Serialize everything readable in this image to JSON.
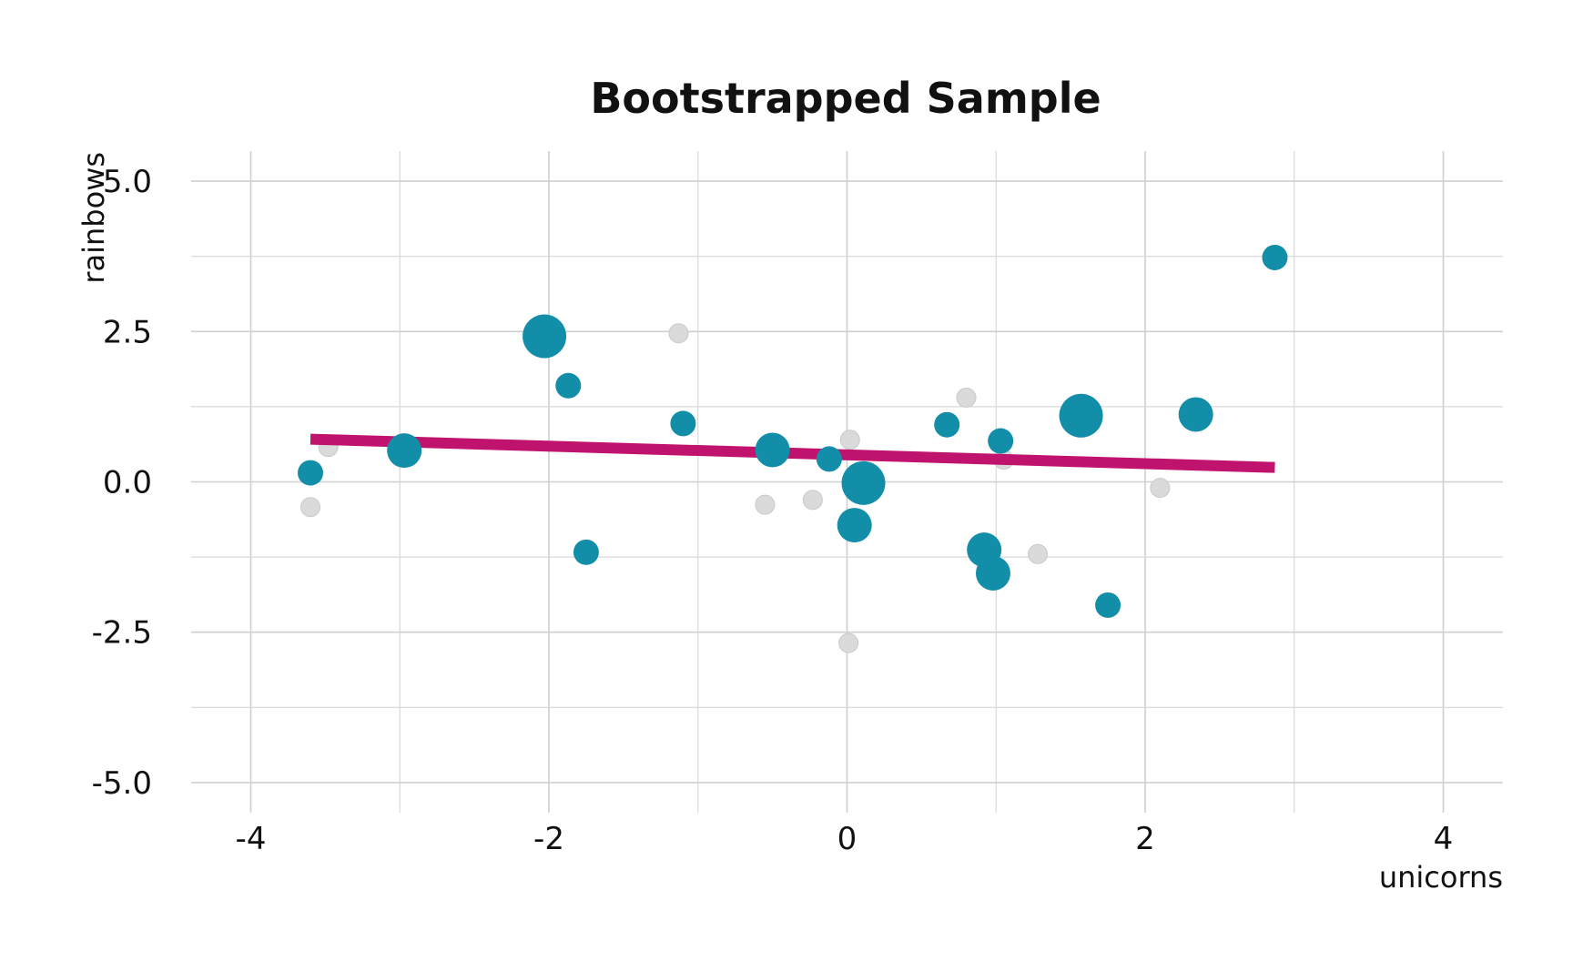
{
  "chart_data": {
    "type": "scatter",
    "title": "Bootstrapped Sample",
    "xlabel": "unicorns",
    "ylabel": "rainbows",
    "xlim": [
      -4.4,
      4.4
    ],
    "ylim": [
      -5.5,
      5.5
    ],
    "x_ticks": [
      -4,
      -2,
      0,
      2,
      4
    ],
    "x_tick_labels": [
      "-4",
      "-2",
      "0",
      "2",
      "4"
    ],
    "y_ticks": [
      -5,
      -2.5,
      0,
      2.5,
      5
    ],
    "y_tick_labels": [
      "-5.0",
      "-2.5",
      "0.0",
      "2.5",
      "5.0"
    ],
    "grid": true,
    "colors": {
      "sampled": "#138ea8",
      "background": "#dadada",
      "fit_line": "#c0136e"
    },
    "background_points": [
      {
        "x": -3.6,
        "y": -0.42
      },
      {
        "x": -3.48,
        "y": 0.58
      },
      {
        "x": -1.13,
        "y": 2.47
      },
      {
        "x": -0.55,
        "y": -0.38
      },
      {
        "x": -0.23,
        "y": -0.3
      },
      {
        "x": 0.02,
        "y": 0.7
      },
      {
        "x": 0.01,
        "y": -2.68
      },
      {
        "x": 0.8,
        "y": 1.4
      },
      {
        "x": 1.05,
        "y": 0.37
      },
      {
        "x": 1.28,
        "y": -1.2
      },
      {
        "x": 2.1,
        "y": -0.1
      }
    ],
    "sampled_points": [
      {
        "x": -3.6,
        "y": 0.15,
        "count": 1
      },
      {
        "x": -2.97,
        "y": 0.52,
        "count": 2
      },
      {
        "x": -2.03,
        "y": 2.42,
        "count": 3
      },
      {
        "x": -1.87,
        "y": 1.6,
        "count": 1
      },
      {
        "x": -1.75,
        "y": -1.17,
        "count": 1
      },
      {
        "x": -1.1,
        "y": 0.97,
        "count": 1
      },
      {
        "x": -0.5,
        "y": 0.53,
        "count": 2
      },
      {
        "x": -0.12,
        "y": 0.38,
        "count": 1
      },
      {
        "x": 0.05,
        "y": -0.72,
        "count": 2
      },
      {
        "x": 0.11,
        "y": -0.02,
        "count": 3
      },
      {
        "x": 0.67,
        "y": 0.95,
        "count": 1
      },
      {
        "x": 0.92,
        "y": -1.13,
        "count": 2
      },
      {
        "x": 0.98,
        "y": -1.52,
        "count": 2
      },
      {
        "x": 1.03,
        "y": 0.68,
        "count": 1
      },
      {
        "x": 1.57,
        "y": 1.1,
        "count": 3
      },
      {
        "x": 1.75,
        "y": -2.05,
        "count": 1
      },
      {
        "x": 2.34,
        "y": 1.12,
        "count": 2
      },
      {
        "x": 2.87,
        "y": 3.73,
        "count": 1
      }
    ],
    "fit_line": {
      "x": [
        -3.6,
        2.87
      ],
      "y": [
        0.71,
        0.24
      ]
    }
  }
}
